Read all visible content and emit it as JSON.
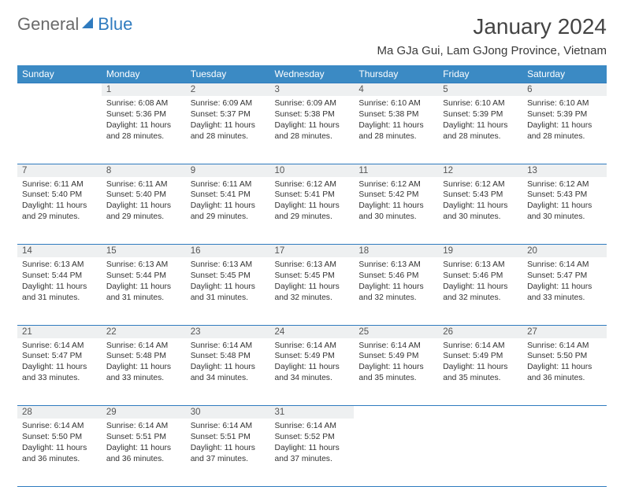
{
  "brand": {
    "part1": "General",
    "part2": "Blue"
  },
  "title": "January 2024",
  "location": "Ma GJa Gui, Lam GJong Province, Vietnam",
  "colors": {
    "header_bg": "#3b8ac4",
    "header_text": "#ffffff",
    "accent_line": "#2f7bbf",
    "daynum_bg": "#eef0f1",
    "body_text": "#333333"
  },
  "day_headers": [
    "Sunday",
    "Monday",
    "Tuesday",
    "Wednesday",
    "Thursday",
    "Friday",
    "Saturday"
  ],
  "weeks": [
    {
      "nums": [
        "",
        "1",
        "2",
        "3",
        "4",
        "5",
        "6"
      ],
      "cells": [
        null,
        {
          "sunrise": "Sunrise: 6:08 AM",
          "sunset": "Sunset: 5:36 PM",
          "day1": "Daylight: 11 hours",
          "day2": "and 28 minutes."
        },
        {
          "sunrise": "Sunrise: 6:09 AM",
          "sunset": "Sunset: 5:37 PM",
          "day1": "Daylight: 11 hours",
          "day2": "and 28 minutes."
        },
        {
          "sunrise": "Sunrise: 6:09 AM",
          "sunset": "Sunset: 5:38 PM",
          "day1": "Daylight: 11 hours",
          "day2": "and 28 minutes."
        },
        {
          "sunrise": "Sunrise: 6:10 AM",
          "sunset": "Sunset: 5:38 PM",
          "day1": "Daylight: 11 hours",
          "day2": "and 28 minutes."
        },
        {
          "sunrise": "Sunrise: 6:10 AM",
          "sunset": "Sunset: 5:39 PM",
          "day1": "Daylight: 11 hours",
          "day2": "and 28 minutes."
        },
        {
          "sunrise": "Sunrise: 6:10 AM",
          "sunset": "Sunset: 5:39 PM",
          "day1": "Daylight: 11 hours",
          "day2": "and 28 minutes."
        }
      ]
    },
    {
      "nums": [
        "7",
        "8",
        "9",
        "10",
        "11",
        "12",
        "13"
      ],
      "cells": [
        {
          "sunrise": "Sunrise: 6:11 AM",
          "sunset": "Sunset: 5:40 PM",
          "day1": "Daylight: 11 hours",
          "day2": "and 29 minutes."
        },
        {
          "sunrise": "Sunrise: 6:11 AM",
          "sunset": "Sunset: 5:40 PM",
          "day1": "Daylight: 11 hours",
          "day2": "and 29 minutes."
        },
        {
          "sunrise": "Sunrise: 6:11 AM",
          "sunset": "Sunset: 5:41 PM",
          "day1": "Daylight: 11 hours",
          "day2": "and 29 minutes."
        },
        {
          "sunrise": "Sunrise: 6:12 AM",
          "sunset": "Sunset: 5:41 PM",
          "day1": "Daylight: 11 hours",
          "day2": "and 29 minutes."
        },
        {
          "sunrise": "Sunrise: 6:12 AM",
          "sunset": "Sunset: 5:42 PM",
          "day1": "Daylight: 11 hours",
          "day2": "and 30 minutes."
        },
        {
          "sunrise": "Sunrise: 6:12 AM",
          "sunset": "Sunset: 5:43 PM",
          "day1": "Daylight: 11 hours",
          "day2": "and 30 minutes."
        },
        {
          "sunrise": "Sunrise: 6:12 AM",
          "sunset": "Sunset: 5:43 PM",
          "day1": "Daylight: 11 hours",
          "day2": "and 30 minutes."
        }
      ]
    },
    {
      "nums": [
        "14",
        "15",
        "16",
        "17",
        "18",
        "19",
        "20"
      ],
      "cells": [
        {
          "sunrise": "Sunrise: 6:13 AM",
          "sunset": "Sunset: 5:44 PM",
          "day1": "Daylight: 11 hours",
          "day2": "and 31 minutes."
        },
        {
          "sunrise": "Sunrise: 6:13 AM",
          "sunset": "Sunset: 5:44 PM",
          "day1": "Daylight: 11 hours",
          "day2": "and 31 minutes."
        },
        {
          "sunrise": "Sunrise: 6:13 AM",
          "sunset": "Sunset: 5:45 PM",
          "day1": "Daylight: 11 hours",
          "day2": "and 31 minutes."
        },
        {
          "sunrise": "Sunrise: 6:13 AM",
          "sunset": "Sunset: 5:45 PM",
          "day1": "Daylight: 11 hours",
          "day2": "and 32 minutes."
        },
        {
          "sunrise": "Sunrise: 6:13 AM",
          "sunset": "Sunset: 5:46 PM",
          "day1": "Daylight: 11 hours",
          "day2": "and 32 minutes."
        },
        {
          "sunrise": "Sunrise: 6:13 AM",
          "sunset": "Sunset: 5:46 PM",
          "day1": "Daylight: 11 hours",
          "day2": "and 32 minutes."
        },
        {
          "sunrise": "Sunrise: 6:14 AM",
          "sunset": "Sunset: 5:47 PM",
          "day1": "Daylight: 11 hours",
          "day2": "and 33 minutes."
        }
      ]
    },
    {
      "nums": [
        "21",
        "22",
        "23",
        "24",
        "25",
        "26",
        "27"
      ],
      "cells": [
        {
          "sunrise": "Sunrise: 6:14 AM",
          "sunset": "Sunset: 5:47 PM",
          "day1": "Daylight: 11 hours",
          "day2": "and 33 minutes."
        },
        {
          "sunrise": "Sunrise: 6:14 AM",
          "sunset": "Sunset: 5:48 PM",
          "day1": "Daylight: 11 hours",
          "day2": "and 33 minutes."
        },
        {
          "sunrise": "Sunrise: 6:14 AM",
          "sunset": "Sunset: 5:48 PM",
          "day1": "Daylight: 11 hours",
          "day2": "and 34 minutes."
        },
        {
          "sunrise": "Sunrise: 6:14 AM",
          "sunset": "Sunset: 5:49 PM",
          "day1": "Daylight: 11 hours",
          "day2": "and 34 minutes."
        },
        {
          "sunrise": "Sunrise: 6:14 AM",
          "sunset": "Sunset: 5:49 PM",
          "day1": "Daylight: 11 hours",
          "day2": "and 35 minutes."
        },
        {
          "sunrise": "Sunrise: 6:14 AM",
          "sunset": "Sunset: 5:49 PM",
          "day1": "Daylight: 11 hours",
          "day2": "and 35 minutes."
        },
        {
          "sunrise": "Sunrise: 6:14 AM",
          "sunset": "Sunset: 5:50 PM",
          "day1": "Daylight: 11 hours",
          "day2": "and 36 minutes."
        }
      ]
    },
    {
      "nums": [
        "28",
        "29",
        "30",
        "31",
        "",
        "",
        ""
      ],
      "cells": [
        {
          "sunrise": "Sunrise: 6:14 AM",
          "sunset": "Sunset: 5:50 PM",
          "day1": "Daylight: 11 hours",
          "day2": "and 36 minutes."
        },
        {
          "sunrise": "Sunrise: 6:14 AM",
          "sunset": "Sunset: 5:51 PM",
          "day1": "Daylight: 11 hours",
          "day2": "and 36 minutes."
        },
        {
          "sunrise": "Sunrise: 6:14 AM",
          "sunset": "Sunset: 5:51 PM",
          "day1": "Daylight: 11 hours",
          "day2": "and 37 minutes."
        },
        {
          "sunrise": "Sunrise: 6:14 AM",
          "sunset": "Sunset: 5:52 PM",
          "day1": "Daylight: 11 hours",
          "day2": "and 37 minutes."
        },
        null,
        null,
        null
      ]
    }
  ]
}
